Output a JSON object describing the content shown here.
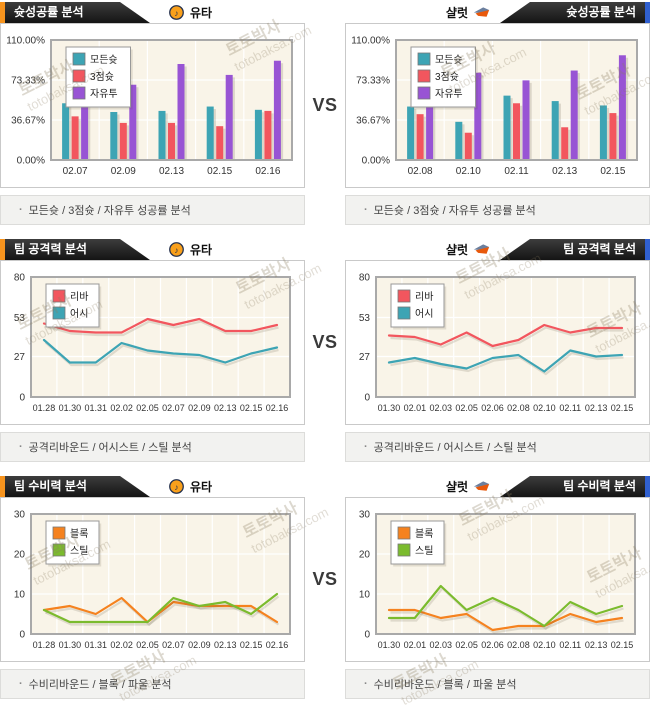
{
  "vs_label": "VS",
  "footer_bullet": "·",
  "teams": {
    "left": {
      "name": "유타",
      "logo_icon": "utah-jazz-logo"
    },
    "right": {
      "name": "샬럿",
      "logo_icon": "charlotte-bobcats-logo"
    }
  },
  "sections": [
    {
      "title": "슛성공률 분석",
      "footer": "모든슛 / 3점슛 / 자유투 성공률 분석"
    },
    {
      "title": "팀 공격력 분석",
      "footer": "공격리바운드 / 어시스트 / 스틸 분석"
    },
    {
      "title": "팀 수비력 분석",
      "footer": "수비리바운드 / 블록 / 파울 분석"
    }
  ],
  "watermark": {
    "line1": "토토박사",
    "line2": "totobaksa.com"
  },
  "accent_colors": {
    "orange": "#f7941e",
    "blue": "#3060d0",
    "banner": "#1a1a1a"
  },
  "chart_data": [
    {
      "type": "bar",
      "team": "유타",
      "title": "슛성공률 분석",
      "categories": [
        "02.07",
        "02.09",
        "02.13",
        "02.15",
        "02.16"
      ],
      "series": [
        {
          "name": "모든슛",
          "color": "#3da4b4",
          "values": [
            52,
            44,
            45,
            49,
            46
          ]
        },
        {
          "name": "3점슛",
          "color": "#f2565e",
          "values": [
            40,
            34,
            34,
            31,
            45
          ]
        },
        {
          "name": "자유투",
          "color": "#9854d4",
          "values": [
            60,
            69,
            88,
            78,
            91
          ]
        }
      ],
      "ylim": [
        0,
        110
      ],
      "grid": true,
      "legend_position": "top-left",
      "yticks": [
        {
          "v": 0,
          "label": "0.00%"
        },
        {
          "v": 36.67,
          "label": "36.67%"
        },
        {
          "v": 73.33,
          "label": "73.33%"
        },
        {
          "v": 110,
          "label": "110.00%"
        }
      ]
    },
    {
      "type": "bar",
      "team": "샬럿",
      "title": "슛성공률 분석",
      "categories": [
        "02.08",
        "02.10",
        "02.11",
        "02.13",
        "02.15"
      ],
      "series": [
        {
          "name": "모든슛",
          "color": "#3da4b4",
          "values": [
            49,
            35,
            59,
            54,
            50
          ]
        },
        {
          "name": "3점슛",
          "color": "#f2565e",
          "values": [
            42,
            25,
            52,
            30,
            43
          ]
        },
        {
          "name": "자유투",
          "color": "#9854d4",
          "values": [
            60,
            80,
            73,
            82,
            96
          ]
        }
      ],
      "ylim": [
        0,
        110
      ],
      "grid": true,
      "legend_position": "top-left",
      "yticks": [
        {
          "v": 0,
          "label": "0.00%"
        },
        {
          "v": 36.67,
          "label": "36.67%"
        },
        {
          "v": 73.33,
          "label": "73.33%"
        },
        {
          "v": 110,
          "label": "110.00%"
        }
      ]
    },
    {
      "type": "line",
      "team": "유타",
      "title": "팀 공격력 분석",
      "categories": [
        "01.28",
        "01.30",
        "01.31",
        "02.02",
        "02.05",
        "02.07",
        "02.09",
        "02.13",
        "02.15",
        "02.16"
      ],
      "series": [
        {
          "name": "리바",
          "color": "#f2565e",
          "values": [
            49,
            44,
            43,
            43,
            52,
            48,
            52,
            44,
            44,
            48
          ]
        },
        {
          "name": "어시",
          "color": "#3da4b4",
          "values": [
            38,
            23,
            23,
            36,
            31,
            29,
            28,
            23,
            29,
            33
          ]
        }
      ],
      "ylim": [
        0,
        80
      ],
      "grid": true,
      "legend_position": "top-left",
      "yticks": [
        {
          "v": 0,
          "label": "0"
        },
        {
          "v": 27,
          "label": "27"
        },
        {
          "v": 53,
          "label": "53"
        },
        {
          "v": 80,
          "label": "80"
        }
      ]
    },
    {
      "type": "line",
      "team": "샬럿",
      "title": "팀 공격력 분석",
      "categories": [
        "01.30",
        "02.01",
        "02.03",
        "02.05",
        "02.06",
        "02.08",
        "02.10",
        "02.11",
        "02.13",
        "02.15"
      ],
      "series": [
        {
          "name": "리바",
          "color": "#f2565e",
          "values": [
            41,
            40,
            35,
            43,
            34,
            38,
            48,
            43,
            46,
            46
          ]
        },
        {
          "name": "어시",
          "color": "#3da4b4",
          "values": [
            23,
            26,
            22,
            19,
            26,
            28,
            17,
            31,
            27,
            28
          ]
        }
      ],
      "ylim": [
        0,
        80
      ],
      "grid": true,
      "legend_position": "top-left",
      "yticks": [
        {
          "v": 0,
          "label": "0"
        },
        {
          "v": 27,
          "label": "27"
        },
        {
          "v": 53,
          "label": "53"
        },
        {
          "v": 80,
          "label": "80"
        }
      ]
    },
    {
      "type": "line",
      "team": "유타",
      "title": "팀 수비력 분석",
      "categories": [
        "01.28",
        "01.30",
        "01.31",
        "02.02",
        "02.05",
        "02.07",
        "02.09",
        "02.13",
        "02.15",
        "02.16"
      ],
      "series": [
        {
          "name": "블록",
          "color": "#f5821f",
          "values": [
            6,
            7,
            5,
            9,
            3,
            8,
            7,
            7,
            7,
            3
          ]
        },
        {
          "name": "스틸",
          "color": "#7bbb2e",
          "values": [
            6,
            3,
            3,
            3,
            3,
            9,
            7,
            8,
            5,
            10
          ]
        }
      ],
      "ylim": [
        0,
        30
      ],
      "grid": true,
      "legend_position": "top-left",
      "yticks": [
        {
          "v": 0,
          "label": "0"
        },
        {
          "v": 10,
          "label": "10"
        },
        {
          "v": 20,
          "label": "20"
        },
        {
          "v": 30,
          "label": "30"
        }
      ]
    },
    {
      "type": "line",
      "team": "샬럿",
      "title": "팀 수비력 분석",
      "categories": [
        "01.30",
        "02.01",
        "02.03",
        "02.05",
        "02.06",
        "02.08",
        "02.10",
        "02.11",
        "02.13",
        "02.15"
      ],
      "series": [
        {
          "name": "블록",
          "color": "#f5821f",
          "values": [
            6,
            6,
            4,
            5,
            1,
            2,
            2,
            5,
            3,
            4
          ]
        },
        {
          "name": "스틸",
          "color": "#7bbb2e",
          "values": [
            4,
            4,
            12,
            6,
            9,
            6,
            2,
            8,
            5,
            7
          ]
        }
      ],
      "ylim": [
        0,
        30
      ],
      "grid": true,
      "legend_position": "top-left",
      "yticks": [
        {
          "v": 0,
          "label": "0"
        },
        {
          "v": 10,
          "label": "10"
        },
        {
          "v": 20,
          "label": "20"
        },
        {
          "v": 30,
          "label": "30"
        }
      ]
    }
  ]
}
